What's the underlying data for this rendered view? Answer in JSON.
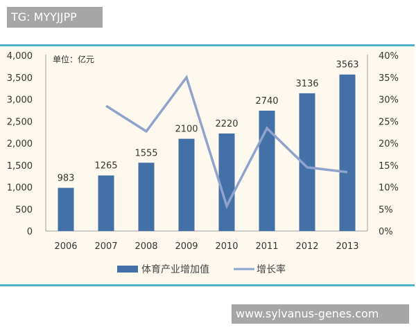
{
  "overlay": {
    "tag_label": "TG: MYYJJPP",
    "watermark": "www.sylvanus-genes.com"
  },
  "colors": {
    "bar": "#4470a8",
    "line": "#8fa3cc",
    "panel_bg": "#fdf9ef",
    "panel_border": "#4fb0c6",
    "axis": "#a0a0a0",
    "text": "#333333"
  },
  "chart_data": {
    "type": "bar",
    "title": "",
    "unit_label": "单位：亿元",
    "categories": [
      "2006",
      "2007",
      "2008",
      "2009",
      "2010",
      "2011",
      "2012",
      "2013"
    ],
    "series": [
      {
        "name": "体育产业增加值",
        "type": "bar",
        "axis": "left",
        "values": [
          983,
          1265,
          1555,
          2100,
          2220,
          2740,
          3136,
          3563
        ]
      },
      {
        "name": "增长率",
        "type": "line",
        "axis": "right",
        "values": [
          null,
          28.5,
          22.7,
          35.0,
          5.7,
          23.4,
          14.5,
          13.4
        ]
      }
    ],
    "left_axis": {
      "ticks": [
        "0",
        "500",
        "1,000",
        "1,500",
        "2,000",
        "2,500",
        "3,000",
        "3,500",
        "4,000"
      ],
      "ylim": [
        0,
        4000
      ]
    },
    "right_axis": {
      "ticks": [
        "0%",
        "5%",
        "10%",
        "15%",
        "20%",
        "25%",
        "30%",
        "35%",
        "40%"
      ],
      "ylim": [
        0,
        40
      ]
    },
    "xlabel": "",
    "ylabel": "",
    "grid": false,
    "legend_position": "bottom",
    "legend": [
      {
        "label": "体育产业增加值",
        "marker": "bar"
      },
      {
        "label": "增长率",
        "marker": "line"
      }
    ]
  }
}
